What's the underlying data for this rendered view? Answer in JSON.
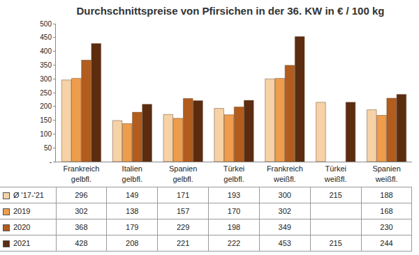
{
  "chart_data": {
    "type": "bar",
    "title": "Durchschnittspreise von Pfirsichen in der 36. KW in € / 100 kg",
    "categories": [
      "Frankreich gelbfl.",
      "Italien gelbfl.",
      "Spanien gelbfl.",
      "Türkei gelbfl.",
      "Frankreich weißfl.",
      "Türkei weißfl.",
      "Spanien weißfl."
    ],
    "series": [
      {
        "name": "Ø '17-'21",
        "color": "#f6d2a6",
        "values": [
          296,
          149,
          171,
          193,
          300,
          215,
          188
        ]
      },
      {
        "name": "2019",
        "color": "#ee9d4c",
        "values": [
          302,
          138,
          157,
          170,
          302,
          null,
          168
        ]
      },
      {
        "name": "2020",
        "color": "#b25c1e",
        "values": [
          368,
          179,
          229,
          198,
          349,
          null,
          230
        ]
      },
      {
        "name": "2021",
        "color": "#5c2c10",
        "values": [
          428,
          208,
          221,
          222,
          453,
          215,
          244
        ]
      }
    ],
    "ylim": [
      0,
      500
    ],
    "yticks": [
      {
        "value": 0,
        "label": "-"
      },
      50,
      100,
      150,
      200,
      250,
      300,
      350,
      400,
      450,
      500
    ],
    "grid": false
  }
}
